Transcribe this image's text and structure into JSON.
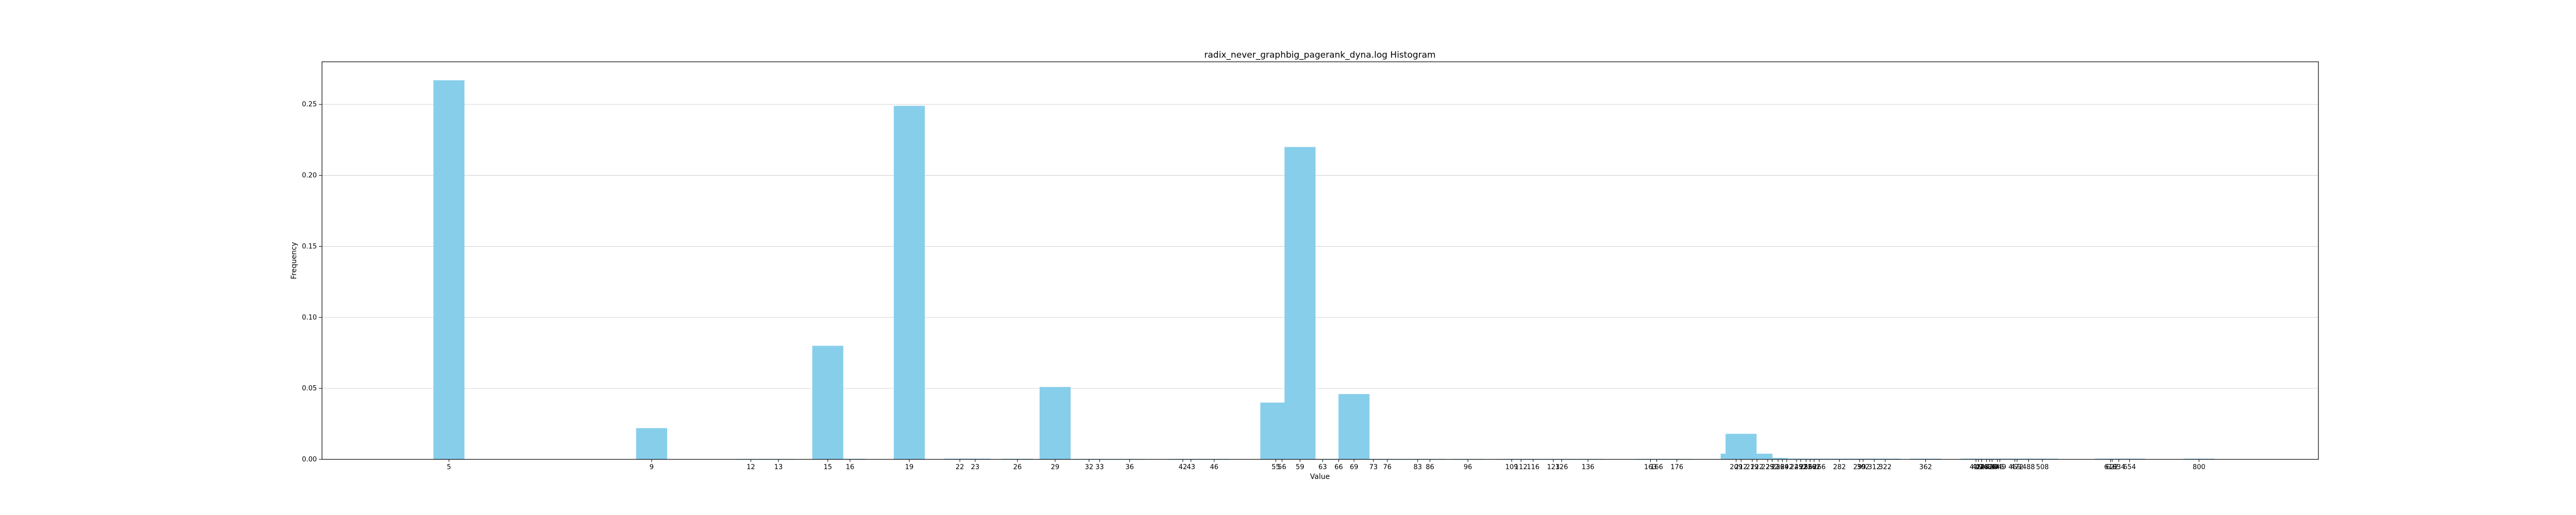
{
  "chart_data": {
    "type": "bar",
    "title": "radix_never_graphbig_pagerank_dyna.log Histogram",
    "xlabel": "Value",
    "ylabel": "Frequency",
    "scale": "log",
    "xlim": [
      3.46,
      1131
    ],
    "ylim": [
      0,
      0.28
    ],
    "yticks": [
      0.0,
      0.05,
      0.1,
      0.15,
      0.2,
      0.25
    ],
    "ytick_labels": [
      "0.00",
      "0.05",
      "0.10",
      "0.15",
      "0.20",
      "0.25"
    ],
    "grid": "y",
    "bar_color": "#87ceeb",
    "xtick_labels": [
      "5",
      "9",
      "12",
      "13",
      "15",
      "16",
      "19",
      "22",
      "23",
      "26",
      "29",
      "32",
      "33",
      "36",
      "42",
      "43",
      "46",
      "55",
      "56",
      "59",
      "63",
      "66",
      "69",
      "73",
      "76",
      "83",
      "86",
      "96",
      "109",
      "112",
      "116",
      "123",
      "126",
      "136",
      "163",
      "166",
      "176",
      "209",
      "212",
      "219",
      "222",
      "229",
      "232",
      "236",
      "239",
      "242",
      "249",
      "252",
      "256",
      "259",
      "262",
      "266",
      "282",
      "299",
      "302",
      "312",
      "322",
      "362",
      "419",
      "422",
      "426",
      "432",
      "436",
      "439",
      "446",
      "449",
      "469",
      "472",
      "488",
      "508",
      "619",
      "622",
      "634",
      "654",
      "800"
    ],
    "bars": [
      {
        "x": 5,
        "y": 0.267
      },
      {
        "x": 9,
        "y": 0.022
      },
      {
        "x": 12,
        "y": 0.0003
      },
      {
        "x": 13,
        "y": 0.0003
      },
      {
        "x": 15,
        "y": 0.08
      },
      {
        "x": 16,
        "y": 0.0004
      },
      {
        "x": 19,
        "y": 0.249
      },
      {
        "x": 22,
        "y": 0.0005
      },
      {
        "x": 23,
        "y": 0.0005
      },
      {
        "x": 26,
        "y": 0.0004
      },
      {
        "x": 29,
        "y": 0.051
      },
      {
        "x": 32,
        "y": 0.0003
      },
      {
        "x": 33,
        "y": 0.0003
      },
      {
        "x": 36,
        "y": 0.0003
      },
      {
        "x": 42,
        "y": 0.0003
      },
      {
        "x": 43,
        "y": 0.0003
      },
      {
        "x": 46,
        "y": 0.0003
      },
      {
        "x": 55,
        "y": 0.04
      },
      {
        "x": 56,
        "y": 0.0004
      },
      {
        "x": 59,
        "y": 0.22
      },
      {
        "x": 63,
        "y": 0.0003
      },
      {
        "x": 66,
        "y": 0.0003
      },
      {
        "x": 69,
        "y": 0.046
      },
      {
        "x": 73,
        "y": 0.0003
      },
      {
        "x": 76,
        "y": 0.0003
      },
      {
        "x": 83,
        "y": 0.0003
      },
      {
        "x": 86,
        "y": 0.0003
      },
      {
        "x": 96,
        "y": 0.0003
      },
      {
        "x": 109,
        "y": 0.0003
      },
      {
        "x": 112,
        "y": 0.0003
      },
      {
        "x": 116,
        "y": 0.0003
      },
      {
        "x": 123,
        "y": 0.0003
      },
      {
        "x": 126,
        "y": 0.0003
      },
      {
        "x": 136,
        "y": 0.0003
      },
      {
        "x": 163,
        "y": 0.0003
      },
      {
        "x": 166,
        "y": 0.0003
      },
      {
        "x": 176,
        "y": 0.0003
      },
      {
        "x": 209,
        "y": 0.004
      },
      {
        "x": 212,
        "y": 0.018
      },
      {
        "x": 219,
        "y": 0.002
      },
      {
        "x": 222,
        "y": 0.004
      },
      {
        "x": 229,
        "y": 0.001
      },
      {
        "x": 232,
        "y": 0.001
      },
      {
        "x": 236,
        "y": 0.0005
      },
      {
        "x": 239,
        "y": 0.0005
      },
      {
        "x": 242,
        "y": 0.0005
      },
      {
        "x": 249,
        "y": 0.0005
      },
      {
        "x": 252,
        "y": 0.0005
      },
      {
        "x": 256,
        "y": 0.0005
      },
      {
        "x": 259,
        "y": 0.0005
      },
      {
        "x": 262,
        "y": 0.0005
      },
      {
        "x": 266,
        "y": 0.0005
      },
      {
        "x": 282,
        "y": 0.0005
      },
      {
        "x": 299,
        "y": 0.0005
      },
      {
        "x": 302,
        "y": 0.0005
      },
      {
        "x": 312,
        "y": 0.0005
      },
      {
        "x": 322,
        "y": 0.0005
      },
      {
        "x": 362,
        "y": 0.0005
      },
      {
        "x": 419,
        "y": 0.0005
      },
      {
        "x": 422,
        "y": 0.0005
      },
      {
        "x": 426,
        "y": 0.0005
      },
      {
        "x": 432,
        "y": 0.0005
      },
      {
        "x": 436,
        "y": 0.0005
      },
      {
        "x": 439,
        "y": 0.0005
      },
      {
        "x": 446,
        "y": 0.0005
      },
      {
        "x": 449,
        "y": 0.0005
      },
      {
        "x": 469,
        "y": 0.0005
      },
      {
        "x": 472,
        "y": 0.0005
      },
      {
        "x": 488,
        "y": 0.0005
      },
      {
        "x": 508,
        "y": 0.0005
      },
      {
        "x": 619,
        "y": 0.0005
      },
      {
        "x": 622,
        "y": 0.0005
      },
      {
        "x": 634,
        "y": 0.0005
      },
      {
        "x": 654,
        "y": 0.0005
      },
      {
        "x": 800,
        "y": 0.0005
      }
    ]
  }
}
